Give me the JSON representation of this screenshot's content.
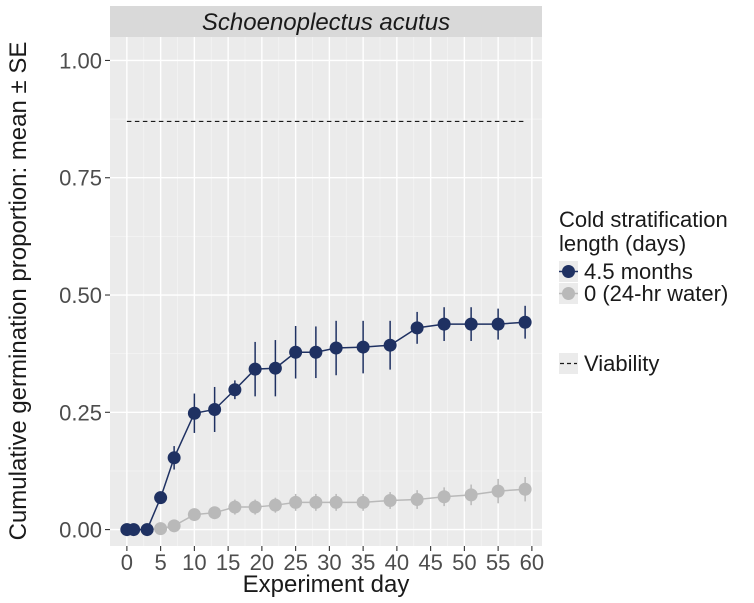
{
  "chart_data": {
    "type": "line",
    "title": "Schoenoplectus acutus",
    "xlabel": "Experiment day",
    "ylabel": "Cumulative germination proportion: mean ± SE",
    "xlim": [
      -2.5,
      61.5
    ],
    "ylim": [
      -0.035,
      1.05
    ],
    "xticks": [
      0,
      5,
      10,
      15,
      20,
      25,
      30,
      35,
      40,
      45,
      50,
      55,
      60
    ],
    "xtick_labels": [
      "0",
      "5",
      "10",
      "15",
      "20",
      "25",
      "30",
      "35",
      "40",
      "45",
      "50",
      "55",
      "60"
    ],
    "yticks": [
      0,
      0.25,
      0.5,
      0.75,
      1.0
    ],
    "ytick_labels": [
      "0.00",
      "0.25",
      "0.50",
      "0.75",
      "1.00"
    ],
    "grid": true,
    "legend": {
      "title_line1": "Cold stratification",
      "title_line2": "length (days)",
      "position": "right",
      "viability_label": "Viability"
    },
    "viability": {
      "value": 0.87,
      "x_start": 0,
      "x_end": 59
    },
    "series": [
      {
        "name": "4.5 months",
        "color": "#1f3162",
        "x": [
          0,
          1,
          3,
          5,
          7,
          10,
          13,
          16,
          19,
          22,
          25,
          28,
          31,
          35,
          39,
          43,
          47,
          51,
          55,
          59
        ],
        "y": [
          0.0,
          0.0,
          0.0,
          0.068,
          0.153,
          0.248,
          0.256,
          0.298,
          0.342,
          0.344,
          0.378,
          0.378,
          0.387,
          0.389,
          0.393,
          0.43,
          0.438,
          0.438,
          0.438,
          0.442
        ],
        "se": [
          0.0,
          0.0,
          0.0,
          0.012,
          0.025,
          0.042,
          0.048,
          0.02,
          0.058,
          0.06,
          0.056,
          0.055,
          0.058,
          0.056,
          0.052,
          0.034,
          0.036,
          0.036,
          0.033,
          0.035
        ]
      },
      {
        "name": "0 (24-hr water)",
        "color": "#b9b9b9",
        "x": [
          0,
          1,
          3,
          5,
          7,
          10,
          13,
          16,
          19,
          22,
          25,
          28,
          31,
          35,
          39,
          43,
          47,
          51,
          55,
          59
        ],
        "y": [
          0.0,
          0.0,
          0.0,
          0.002,
          0.008,
          0.032,
          0.036,
          0.048,
          0.048,
          0.052,
          0.058,
          0.058,
          0.058,
          0.058,
          0.062,
          0.064,
          0.07,
          0.074,
          0.082,
          0.086
        ],
        "se": [
          0.0,
          0.0,
          0.0,
          0.0,
          0.006,
          0.012,
          0.012,
          0.016,
          0.016,
          0.016,
          0.018,
          0.018,
          0.018,
          0.018,
          0.018,
          0.02,
          0.02,
          0.022,
          0.026,
          0.026
        ]
      }
    ]
  }
}
